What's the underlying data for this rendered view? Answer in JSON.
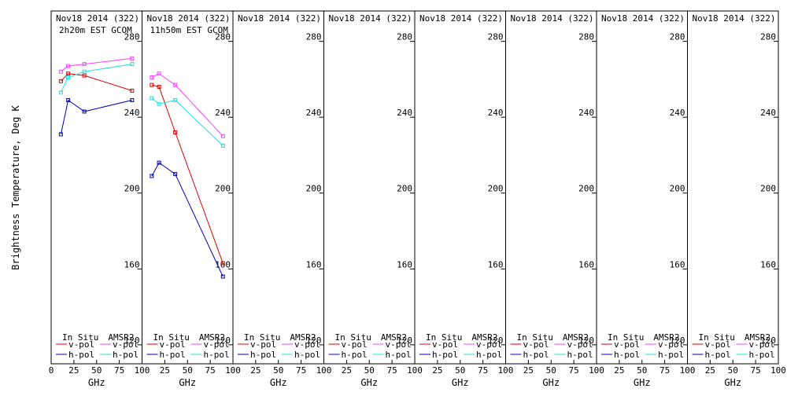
{
  "chart_data": {
    "type": "line",
    "ylabel": "Brightness Temperature, Deg K",
    "xlabel": "GHz",
    "xlim": [
      0,
      100
    ],
    "ylim": [
      110,
      296
    ],
    "xticks": [
      0,
      25,
      50,
      75,
      100
    ],
    "xtick_labels": [
      "0",
      "25",
      "50",
      "75",
      "100"
    ],
    "yticks": [
      120,
      160,
      200,
      240,
      280
    ],
    "ytick_labels": [
      "120",
      "160",
      "200",
      "240",
      "280"
    ],
    "legend": {
      "in_situ_title": "In Situ",
      "amsr2_title": "AMSR2",
      "v_pol": "v-pol",
      "h_pol": "h-pol"
    },
    "colors": {
      "insitu_v": "#e00000",
      "insitu_h": "#0000c0",
      "amsr2_v": "#ff40ff",
      "amsr2_h": "#20e0e0",
      "axis": "#000000"
    },
    "panels": [
      {
        "title": "Nov18 2014 (322)",
        "subtitle": "2h20m EST GCOM",
        "series": [
          {
            "name": "In Situ v-pol",
            "key": "insitu_v",
            "x": [
              10.7,
              18.7,
              36.5,
              89.0
            ],
            "y": [
              259,
              263,
              262,
              254
            ]
          },
          {
            "name": "In Situ h-pol",
            "key": "insitu_h",
            "x": [
              10.7,
              18.7,
              36.5,
              89.0
            ],
            "y": [
              231,
              249,
              243,
              249
            ]
          },
          {
            "name": "AMSR2 v-pol",
            "key": "amsr2_v",
            "x": [
              10.7,
              18.7,
              36.5,
              89.0
            ],
            "y": [
              264,
              267,
              268,
              271
            ]
          },
          {
            "name": "AMSR2 h-pol",
            "key": "amsr2_h",
            "x": [
              10.7,
              18.7,
              36.5,
              89.0
            ],
            "y": [
              253,
              261,
              264,
              268
            ]
          }
        ]
      },
      {
        "title": "Nov18 2014 (322)",
        "subtitle": "11h50m EST GCOM",
        "series": [
          {
            "name": "In Situ v-pol",
            "key": "insitu_v",
            "x": [
              10.7,
              18.7,
              36.5,
              89.0
            ],
            "y": [
              257,
              256,
              232,
              163
            ]
          },
          {
            "name": "In Situ h-pol",
            "key": "insitu_h",
            "x": [
              10.7,
              18.7,
              36.5,
              89.0
            ],
            "y": [
              209,
              216,
              210,
              156
            ]
          },
          {
            "name": "AMSR2 v-pol",
            "key": "amsr2_v",
            "x": [
              10.7,
              18.7,
              36.5,
              89.0
            ],
            "y": [
              261,
              263,
              257,
              230
            ]
          },
          {
            "name": "AMSR2 h-pol",
            "key": "amsr2_h",
            "x": [
              10.7,
              18.7,
              36.5,
              89.0
            ],
            "y": [
              250,
              247,
              249,
              225
            ]
          }
        ]
      },
      {
        "title": "Nov18 2014 (322)",
        "subtitle": "",
        "series": []
      },
      {
        "title": "Nov18 2014 (322)",
        "subtitle": "",
        "series": []
      },
      {
        "title": "Nov18 2014 (322)",
        "subtitle": "",
        "series": []
      },
      {
        "title": "Nov18 2014 (322)",
        "subtitle": "",
        "series": []
      },
      {
        "title": "Nov18 2014 (322)",
        "subtitle": "",
        "series": []
      },
      {
        "title": "Nov18 2014 (322)",
        "subtitle": "",
        "series": []
      }
    ]
  }
}
